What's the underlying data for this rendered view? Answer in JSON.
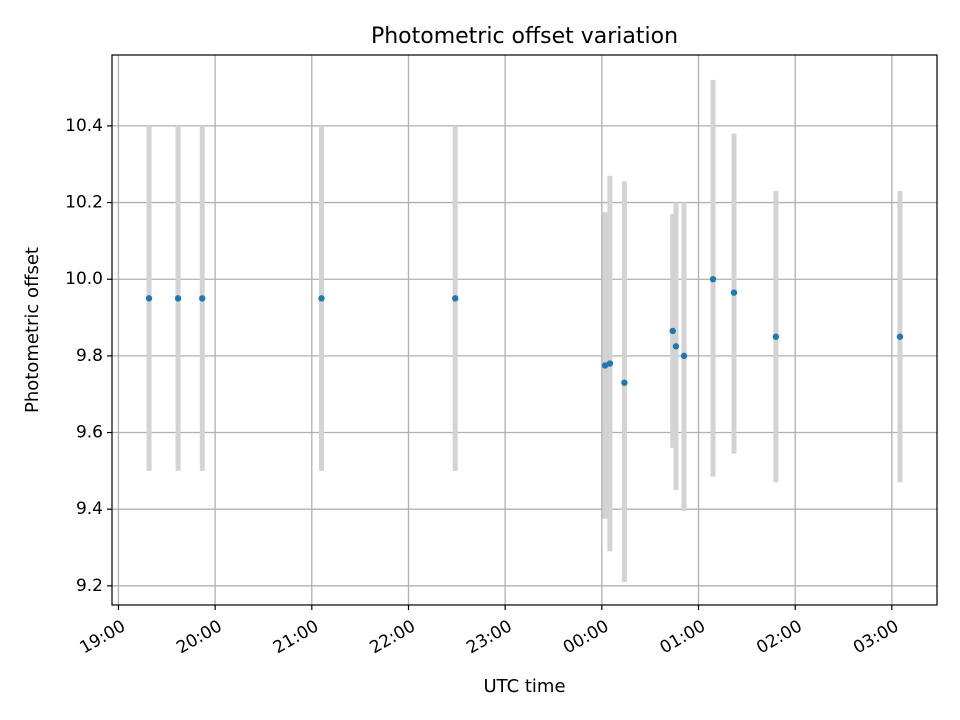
{
  "chart_data": {
    "type": "scatter",
    "title": "Photometric offset variation",
    "xlabel": "UTC time",
    "ylabel": "Photometric offset",
    "x_axis": {
      "type": "time",
      "range": [
        "2023-01-01T18:56",
        "2023-01-02T03:28"
      ],
      "ticks": [
        {
          "t": "2023-01-01T19:00",
          "label": "19:00"
        },
        {
          "t": "2023-01-01T20:00",
          "label": "20:00"
        },
        {
          "t": "2023-01-01T21:00",
          "label": "21:00"
        },
        {
          "t": "2023-01-01T22:00",
          "label": "22:00"
        },
        {
          "t": "2023-01-01T23:00",
          "label": "23:00"
        },
        {
          "t": "2023-01-02T00:00",
          "label": "00:00"
        },
        {
          "t": "2023-01-02T01:00",
          "label": "01:00"
        },
        {
          "t": "2023-01-02T02:00",
          "label": "02:00"
        },
        {
          "t": "2023-01-02T03:00",
          "label": "03:00"
        }
      ]
    },
    "y_axis": {
      "range": [
        9.15,
        10.585
      ],
      "ticks": [
        {
          "v": 9.2,
          "label": "9.2"
        },
        {
          "v": 9.4,
          "label": "9.4"
        },
        {
          "v": 9.6,
          "label": "9.6"
        },
        {
          "v": 9.8,
          "label": "9.8"
        },
        {
          "v": 10.0,
          "label": "10.0"
        },
        {
          "v": 10.2,
          "label": "10.2"
        },
        {
          "v": 10.4,
          "label": "10.4"
        }
      ]
    },
    "grid": true,
    "colors": {
      "point": "#1f77b4",
      "error_bar": "#d3d3d3",
      "grid": "#b0b0b0"
    },
    "points": [
      {
        "t": "2023-01-01T19:19",
        "y": 9.95,
        "low": 9.5,
        "high": 10.4
      },
      {
        "t": "2023-01-01T19:37",
        "y": 9.95,
        "low": 9.5,
        "high": 10.4
      },
      {
        "t": "2023-01-01T19:52",
        "y": 9.95,
        "low": 9.5,
        "high": 10.4
      },
      {
        "t": "2023-01-01T21:06",
        "y": 9.95,
        "low": 9.5,
        "high": 10.4
      },
      {
        "t": "2023-01-01T22:29",
        "y": 9.95,
        "low": 9.5,
        "high": 10.4
      },
      {
        "t": "2023-01-02T00:02",
        "y": 9.775,
        "low": 9.375,
        "high": 10.175
      },
      {
        "t": "2023-01-02T00:05",
        "y": 9.78,
        "low": 9.29,
        "high": 10.27
      },
      {
        "t": "2023-01-02T00:14",
        "y": 9.73,
        "low": 9.21,
        "high": 10.255
      },
      {
        "t": "2023-01-02T00:44",
        "y": 9.865,
        "low": 9.56,
        "high": 10.17
      },
      {
        "t": "2023-01-02T00:46",
        "y": 9.825,
        "low": 9.45,
        "high": 10.2
      },
      {
        "t": "2023-01-02T00:51",
        "y": 9.8,
        "low": 9.395,
        "high": 10.2
      },
      {
        "t": "2023-01-02T01:09",
        "y": 10.0,
        "low": 9.485,
        "high": 10.52
      },
      {
        "t": "2023-01-02T01:22",
        "y": 9.965,
        "low": 9.545,
        "high": 10.38
      },
      {
        "t": "2023-01-02T01:48",
        "y": 9.85,
        "low": 9.47,
        "high": 10.23
      },
      {
        "t": "2023-01-02T03:05",
        "y": 9.85,
        "low": 9.47,
        "high": 10.23
      }
    ]
  }
}
